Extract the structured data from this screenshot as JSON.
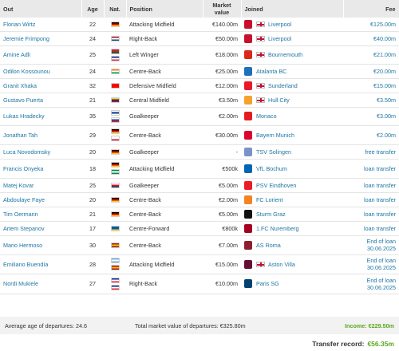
{
  "headers": {
    "out": "Out",
    "age": "Age",
    "nat": "Nat.",
    "position": "Position",
    "market_value": "Market value",
    "joined": "Joined",
    "fee": "Fee"
  },
  "rows": [
    {
      "name": "Florian Wirtz",
      "age": "22",
      "nat": [
        "#000000|#dd0000|#ffce00"
      ],
      "position": "Attacking Midfield",
      "mv": "€140.00m",
      "crest": "#c8102e",
      "club": "Liverpool",
      "eng": true,
      "fee": "€125.00m"
    },
    {
      "name": "Jeremie Frimpong",
      "age": "24",
      "nat": [
        "#ae1c28|#ffffff|#21468b"
      ],
      "position": "Right-Back",
      "mv": "€50.00m",
      "crest": "#c8102e",
      "club": "Liverpool",
      "eng": true,
      "fee": "€40.00m"
    },
    {
      "name": "Amine Adli",
      "age": "25",
      "nat": [
        "#c1272d|#c1272d|#006233",
        "#002395|#ffffff|#ed2939"
      ],
      "position": "Left Winger",
      "mv": "€18.00m",
      "crest": "#da291c",
      "club": "Bournemouth",
      "eng": true,
      "fee": "€21.00m"
    },
    {
      "name": "Odilon Kossounou",
      "age": "24",
      "nat": [
        "#f77f00|#ffffff|#009e60"
      ],
      "position": "Centre-Back",
      "mv": "€25.00m",
      "crest": "#1e71b8",
      "club": "Atalanta BC",
      "eng": false,
      "fee": "€20.00m"
    },
    {
      "name": "Granit Xhaka",
      "age": "32",
      "nat": [
        "#ff0000|#ff0000|#ff0000"
      ],
      "position": "Defensive Midfield",
      "mv": "€12.00m",
      "crest": "#eb172b",
      "club": "Sunderland",
      "eng": true,
      "fee": "€15.00m"
    },
    {
      "name": "Gustavo Puerta",
      "age": "21",
      "nat": [
        "#fcd116|#003893|#ce1126"
      ],
      "position": "Central Midfield",
      "mv": "€3.50m",
      "crest": "#f5a12d",
      "club": "Hull City",
      "eng": true,
      "fee": "€3.50m"
    },
    {
      "name": "Lukas Hradecky",
      "age": "35",
      "nat": [
        "#ffffff|#003580|#ffffff",
        "#ffffff|#0b4ea2|#ee1c25"
      ],
      "position": "Goalkeeper",
      "mv": "€2.00m",
      "crest": "#e51b22",
      "club": "Monaco",
      "eng": false,
      "fee": "€3.00m"
    },
    {
      "name": "Jonathan Tah",
      "age": "29",
      "nat": [
        "#000000|#dd0000|#ffce00",
        "#ffffff|#ffffff|#cf142b"
      ],
      "position": "Centre-Back",
      "mv": "€30.00m",
      "crest": "#dc052d",
      "club": "Bayern Munich",
      "eng": false,
      "fee": "€2.00m"
    },
    {
      "name": "Luca Novodomsky",
      "age": "20",
      "nat": [
        "#000000|#dd0000|#ffce00"
      ],
      "position": "Goalkeeper",
      "mv": "-",
      "crest": "#7a92c6",
      "club": "TSV Solingen",
      "eng": false,
      "fee": "free transfer"
    },
    {
      "name": "Francis Onyeka",
      "age": "18",
      "nat": [
        "#000000|#dd0000|#ffce00",
        "#008751|#ffffff|#008751"
      ],
      "position": "Attacking Midfield",
      "mv": "€500k",
      "crest": "#0065b3",
      "club": "VfL Bochum",
      "eng": false,
      "fee": "loan transfer"
    },
    {
      "name": "Matej Kovar",
      "age": "25",
      "nat": [
        "#ffffff|#d7141a|#11457e"
      ],
      "position": "Goalkeeper",
      "mv": "€5.00m",
      "crest": "#ed1c24",
      "club": "PSV Eindhoven",
      "eng": false,
      "fee": "loan transfer"
    },
    {
      "name": "Abdoulaye Faye",
      "age": "20",
      "nat": [
        "#000000|#dd0000|#ffce00"
      ],
      "position": "Centre-Back",
      "mv": "€2.00m",
      "crest": "#f58220",
      "club": "FC Lorient",
      "eng": false,
      "fee": "loan transfer"
    },
    {
      "name": "Tim Oermann",
      "age": "21",
      "nat": [
        "#000000|#dd0000|#ffce00"
      ],
      "position": "Centre-Back",
      "mv": "€5.00m",
      "crest": "#111111",
      "club": "Sturm Graz",
      "eng": false,
      "fee": "loan transfer"
    },
    {
      "name": "Artem Stepanov",
      "age": "17",
      "nat": [
        "#0057b7|#0057b7|#ffd700"
      ],
      "position": "Centre-Forward",
      "mv": "€800k",
      "crest": "#a50021",
      "club": "1.FC Nuremberg",
      "eng": false,
      "fee": "loan transfer"
    },
    {
      "name": "Mario Hermoso",
      "age": "30",
      "nat": [
        "#aa151b|#f1bf00|#aa151b"
      ],
      "position": "Centre-Back",
      "mv": "€7.00m",
      "crest": "#8e1f2f",
      "club": "AS Roma",
      "eng": false,
      "fee": "End of loan 30.06.2025"
    },
    {
      "name": "Emiliano Buendía",
      "age": "28",
      "nat": [
        "#74acdf|#ffffff|#74acdf",
        "#aa151b|#f1bf00|#aa151b"
      ],
      "position": "Attacking Midfield",
      "mv": "€15.00m",
      "crest": "#670e36",
      "club": "Aston Villa",
      "eng": true,
      "fee": "End of loan 30.06.2025"
    },
    {
      "name": "Nordi Mukiele",
      "age": "27",
      "nat": [
        "#002395|#ffffff|#ed2939",
        "#002395|#ffffff|#ed2939"
      ],
      "position": "Right-Back",
      "mv": "€10.00m",
      "crest": "#004170",
      "club": "Paris SG",
      "eng": false,
      "fee": "End of loan 30.06.2025"
    }
  ],
  "footer": {
    "average_age": "Average age of departures: 24.6",
    "total_market_value": "Total market value of departures: €325.80m",
    "income": "Income: €229.50m",
    "transfer_record_label": "Transfer record:",
    "transfer_record_value": "€56.35m"
  }
}
